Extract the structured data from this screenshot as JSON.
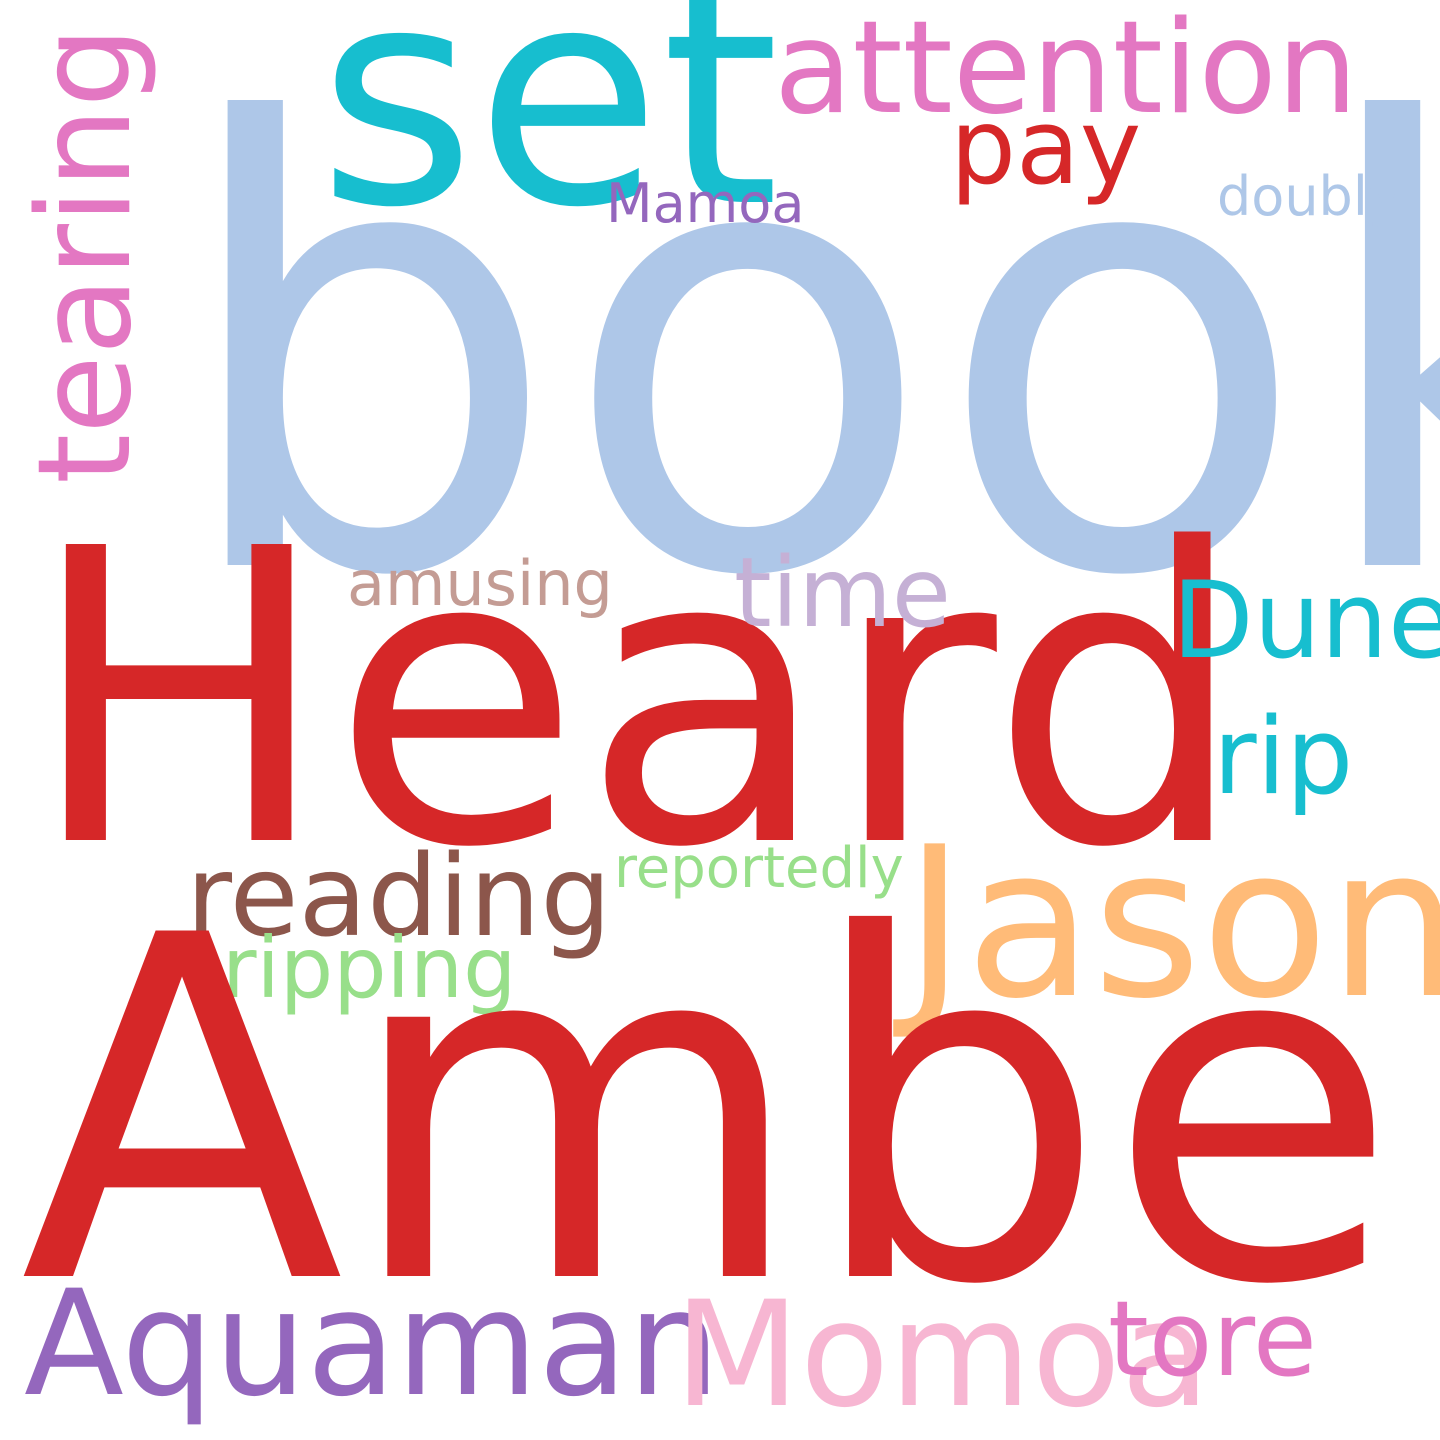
{
  "words": {
    "book": {
      "text": "book",
      "color": "#aec7e8"
    },
    "heard": {
      "text": "Heard",
      "color": "#d62728"
    },
    "amber": {
      "text": "Amber",
      "color": "#d62728"
    },
    "set": {
      "text": "set",
      "color": "#17becf"
    },
    "attention": {
      "text": "attention",
      "color": "#e377c2"
    },
    "pay": {
      "text": "pay",
      "color": "#d62728"
    },
    "tearing": {
      "text": "tearing",
      "color": "#e377c2"
    },
    "mamoa": {
      "text": "Mamoa",
      "color": "#9467bd"
    },
    "doubly": {
      "text": "doubly",
      "color": "#aec7e8"
    },
    "amusing": {
      "text": "amusing",
      "color": "#c49c94"
    },
    "time": {
      "text": "time",
      "color": "#c5b0d5"
    },
    "dune": {
      "text": "Dune",
      "color": "#17becf"
    },
    "rip": {
      "text": "rip",
      "color": "#17becf"
    },
    "reading": {
      "text": "reading",
      "color": "#8c564b"
    },
    "reportedly": {
      "text": "reportedly",
      "color": "#98df8a"
    },
    "jason": {
      "text": "Jason",
      "color": "#ffbb78"
    },
    "ripping": {
      "text": "ripping",
      "color": "#98df8a"
    },
    "aquaman": {
      "text": "Aquaman",
      "color": "#9467bd"
    },
    "momoa": {
      "text": "Momoa",
      "color": "#f7b6d2"
    },
    "tore": {
      "text": "tore",
      "color": "#e377c2"
    }
  }
}
